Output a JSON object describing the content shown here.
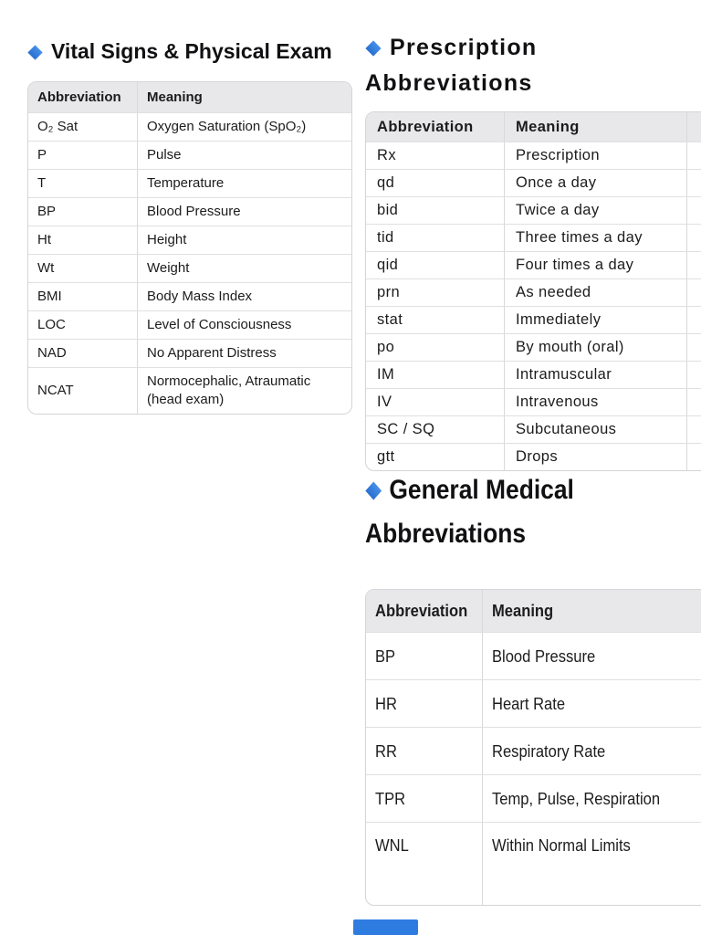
{
  "page": {
    "background": "#ffffff",
    "text_color": "#1c1c1e",
    "accent_blue": "#2e7ce0",
    "table_header_bg": "#e8e8ea",
    "table_border": "#d5d5d8"
  },
  "sections": {
    "vital": {
      "title": "Vital Signs & Physical Exam",
      "bullet_icon": "blue-diamond",
      "table": {
        "headers": [
          "Abbreviation",
          "Meaning"
        ],
        "rows": [
          [
            "O₂ Sat",
            "Oxygen Saturation (SpO₂)"
          ],
          [
            "P",
            "Pulse"
          ],
          [
            "T",
            "Temperature"
          ],
          [
            "BP",
            "Blood Pressure"
          ],
          [
            "Ht",
            "Height"
          ],
          [
            "Wt",
            "Weight"
          ],
          [
            "BMI",
            "Body Mass Index"
          ],
          [
            "LOC",
            "Level of Consciousness"
          ],
          [
            "NAD",
            "No Apparent Distress"
          ],
          [
            "NCAT",
            "Normocephalic, Atraumatic (head exam)"
          ]
        ]
      }
    },
    "prescription": {
      "title": "Prescription Abbreviations",
      "bullet_icon": "blue-diamond",
      "table": {
        "headers": [
          "Abbreviation",
          "Meaning"
        ],
        "rows": [
          [
            "Rx",
            "Prescription"
          ],
          [
            "qd",
            "Once a day"
          ],
          [
            "bid",
            "Twice a day"
          ],
          [
            "tid",
            "Three times a day"
          ],
          [
            "qid",
            "Four times a day"
          ],
          [
            "prn",
            "As needed"
          ],
          [
            "stat",
            "Immediately"
          ],
          [
            "po",
            "By mouth (oral)"
          ],
          [
            "IM",
            "Intramuscular"
          ],
          [
            "IV",
            "Intravenous"
          ],
          [
            "SC / SQ",
            "Subcutaneous"
          ],
          [
            "gtt",
            "Drops"
          ]
        ]
      }
    },
    "general": {
      "title": "General Medical Abbreviations",
      "bullet_icon": "blue-diamond",
      "table": {
        "headers": [
          "Abbreviation",
          "Meaning"
        ],
        "rows": [
          [
            "BP",
            "Blood Pressure"
          ],
          [
            "HR",
            "Heart Rate"
          ],
          [
            "RR",
            "Respiratory Rate"
          ],
          [
            "TPR",
            "Temp, Pulse, Respiration"
          ],
          [
            "WNL",
            "Within Normal Limits"
          ]
        ]
      }
    }
  }
}
